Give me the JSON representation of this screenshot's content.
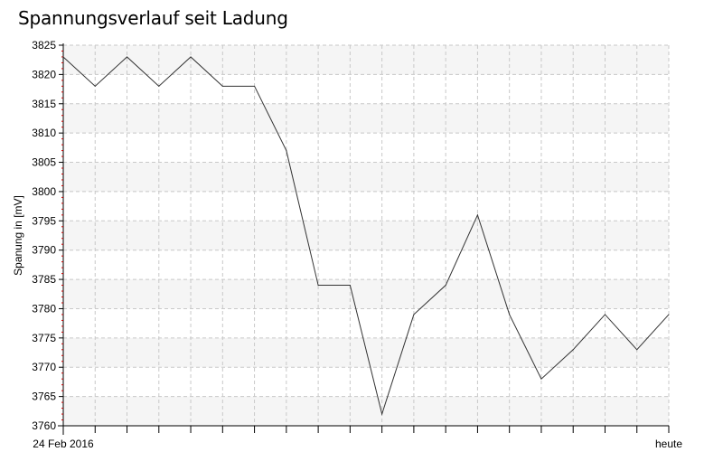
{
  "chart_data": {
    "type": "line",
    "title": "Spannungsverlauf seit Ladung",
    "ylabel": "Spanung in [mV]",
    "xlabel": "",
    "x_labels": {
      "start": "24 Feb 2016",
      "end": "heute"
    },
    "ylim": [
      3760,
      3825
    ],
    "y_ticks": [
      3760,
      3765,
      3770,
      3775,
      3780,
      3785,
      3790,
      3795,
      3800,
      3805,
      3810,
      3815,
      3820,
      3825
    ],
    "grid": true,
    "series": [
      {
        "values": [
          3823,
          3818,
          3823,
          3818,
          3823,
          3818,
          3818,
          3807,
          3784,
          3784,
          3762,
          3779,
          3784,
          3796,
          3779,
          3768,
          3773,
          3779,
          3773,
          3779
        ]
      }
    ],
    "colors": {
      "line": "#333333",
      "grid": "#c8c8c8",
      "band": "#f5f5f5",
      "axis": "#000000",
      "minor_tick": "#cc0000"
    }
  }
}
